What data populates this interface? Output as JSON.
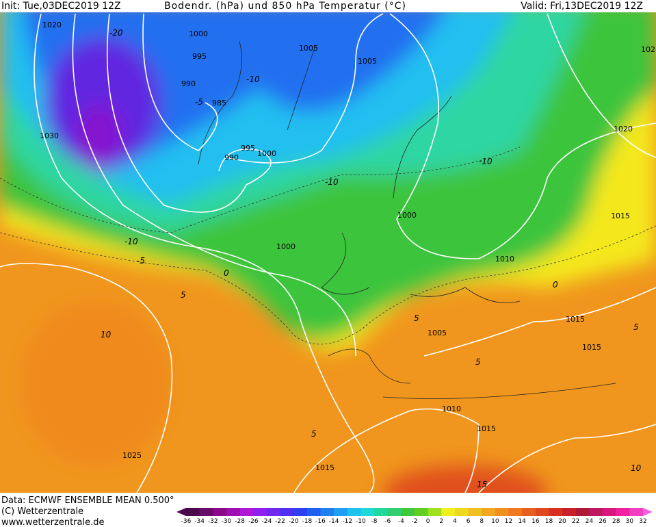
{
  "header": {
    "init": "Init: Tue,03DEC2019 12Z",
    "title": "Bodendr. (hPa) und 850 hPa Temperatur (°C)",
    "valid": "Valid: Fri,13DEC2019 12Z"
  },
  "footer": {
    "data": "Data: ECMWF ENSEMBLE MEAN 0.500°",
    "copyright": "(C) Wetterzentrale",
    "url": "www.wetterzentrale.de"
  },
  "legend": {
    "labels": [
      -36,
      -34,
      -32,
      -30,
      -28,
      -26,
      -24,
      -22,
      -20,
      -18,
      -16,
      -14,
      -12,
      -10,
      -8,
      -6,
      -4,
      -2,
      0,
      2,
      4,
      6,
      8,
      10,
      12,
      14,
      16,
      18,
      20,
      22,
      24,
      26,
      28,
      30,
      32
    ]
  },
  "isobar_labels": [
    "1020",
    "1000",
    "995",
    "990",
    "985",
    "995",
    "990",
    "1000",
    "1005",
    "1005",
    "1030",
    "1000",
    "1000",
    "1010",
    "1020",
    "1015",
    "1015",
    "1015",
    "1005",
    "1010",
    "1015",
    "1025",
    "1015",
    "102"
  ],
  "temperature_labels": [
    "-20",
    "-10",
    "-10",
    "-10",
    "-10",
    "-5",
    "-5",
    "0",
    "5",
    "5",
    "10",
    "5",
    "5",
    "0",
    "5",
    "10",
    "15"
  ]
}
